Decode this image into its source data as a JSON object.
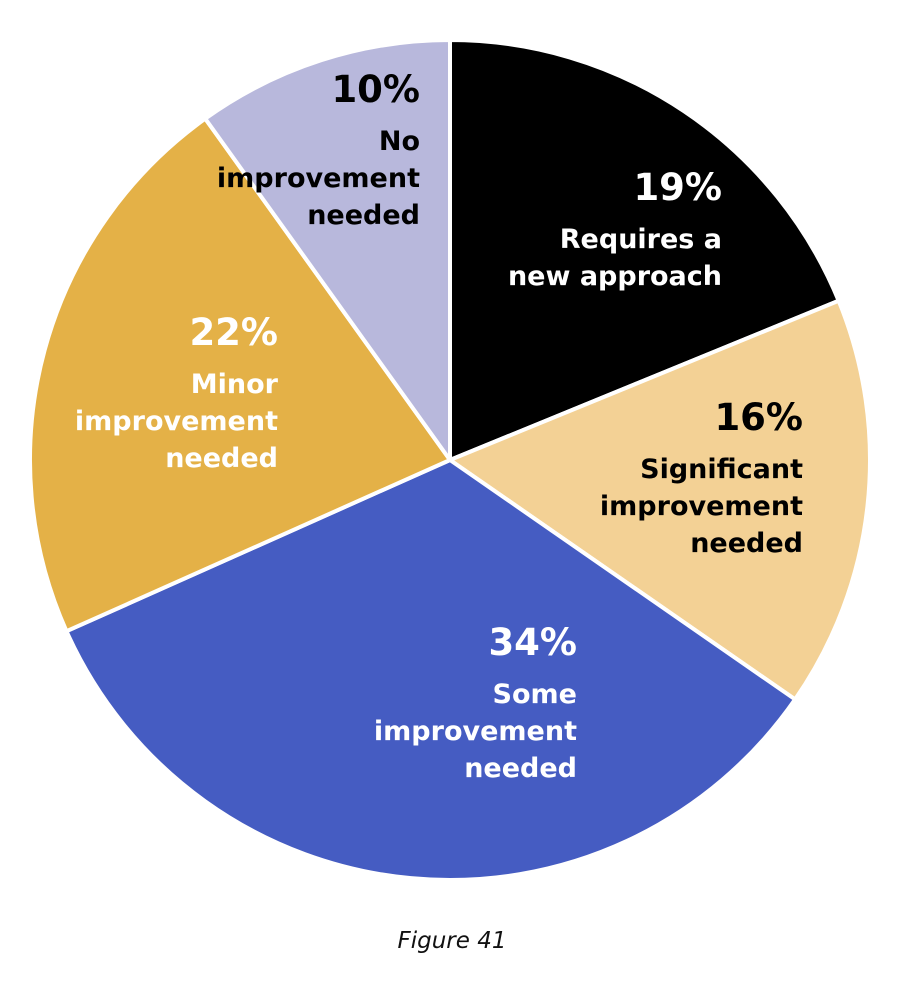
{
  "chart_data": {
    "type": "pie",
    "slices": [
      {
        "label_lines": [
          "Requires a",
          "new approach"
        ],
        "value": 19,
        "value_label": "19%",
        "color": "#000000",
        "text_color": "#ffffff"
      },
      {
        "label_lines": [
          "Significant",
          "improvement",
          "needed"
        ],
        "value": 16,
        "value_label": "16%",
        "color": "#f3d195",
        "text_color": "#000000"
      },
      {
        "label_lines": [
          "Some",
          "improvement",
          "needed"
        ],
        "value": 34,
        "value_label": "34%",
        "color": "#455cc2",
        "text_color": "#ffffff"
      },
      {
        "label_lines": [
          "Minor",
          "improvement",
          "needed"
        ],
        "value": 22,
        "value_label": "22%",
        "color": "#e4b147",
        "text_color": "#ffffff"
      },
      {
        "label_lines": [
          "No",
          "improvement",
          "needed"
        ],
        "value": 10,
        "value_label": "10%",
        "color": "#b8b8dc",
        "text_color": "#000000"
      }
    ],
    "start": "12 o'clock",
    "direction": "clockwise",
    "legend": "none"
  },
  "caption": "Figure 41"
}
